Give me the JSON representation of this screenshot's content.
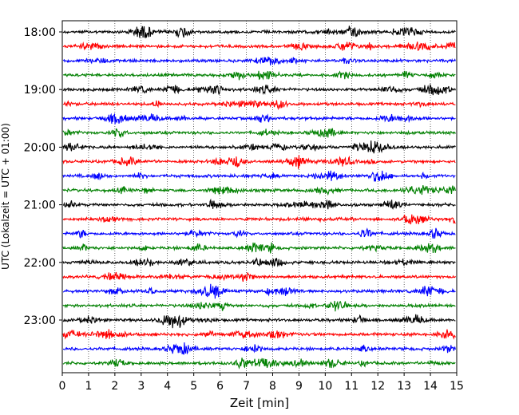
{
  "chart_data": {
    "type": "line",
    "title": "",
    "xlabel": "Zeit  [min]",
    "ylabel": "UTC (Lokalzeit = UTC + 01:00)",
    "xlim": [
      0,
      15
    ],
    "x_ticks": [
      "0",
      "1",
      "2",
      "3",
      "4",
      "5",
      "6",
      "7",
      "8",
      "9",
      "10",
      "11",
      "12",
      "13",
      "14",
      "15"
    ],
    "y_tick_labels": [
      "18:00",
      "19:00",
      "20:00",
      "21:00",
      "22:00",
      "23:00"
    ],
    "grid": "vertical dotted lines at each minute",
    "trace_colors": [
      "#000000",
      "#ff0000",
      "#0000ff",
      "#008000"
    ],
    "series": [
      {
        "start": "18:00",
        "color": "#000000"
      },
      {
        "start": "18:15",
        "color": "#ff0000"
      },
      {
        "start": "18:30",
        "color": "#0000ff"
      },
      {
        "start": "18:45",
        "color": "#008000"
      },
      {
        "start": "19:00",
        "color": "#000000"
      },
      {
        "start": "19:15",
        "color": "#ff0000"
      },
      {
        "start": "19:30",
        "color": "#0000ff"
      },
      {
        "start": "19:45",
        "color": "#008000"
      },
      {
        "start": "20:00",
        "color": "#000000"
      },
      {
        "start": "20:15",
        "color": "#ff0000"
      },
      {
        "start": "20:30",
        "color": "#0000ff"
      },
      {
        "start": "20:45",
        "color": "#008000"
      },
      {
        "start": "21:00",
        "color": "#000000"
      },
      {
        "start": "21:15",
        "color": "#ff0000"
      },
      {
        "start": "21:30",
        "color": "#0000ff"
      },
      {
        "start": "21:45",
        "color": "#008000"
      },
      {
        "start": "22:00",
        "color": "#000000"
      },
      {
        "start": "22:15",
        "color": "#ff0000"
      },
      {
        "start": "22:30",
        "color": "#0000ff"
      },
      {
        "start": "22:45",
        "color": "#008000"
      },
      {
        "start": "23:00",
        "color": "#000000"
      },
      {
        "start": "23:15",
        "color": "#ff0000"
      },
      {
        "start": "23:30",
        "color": "#0000ff"
      },
      {
        "start": "23:45",
        "color": "#008000"
      }
    ]
  }
}
